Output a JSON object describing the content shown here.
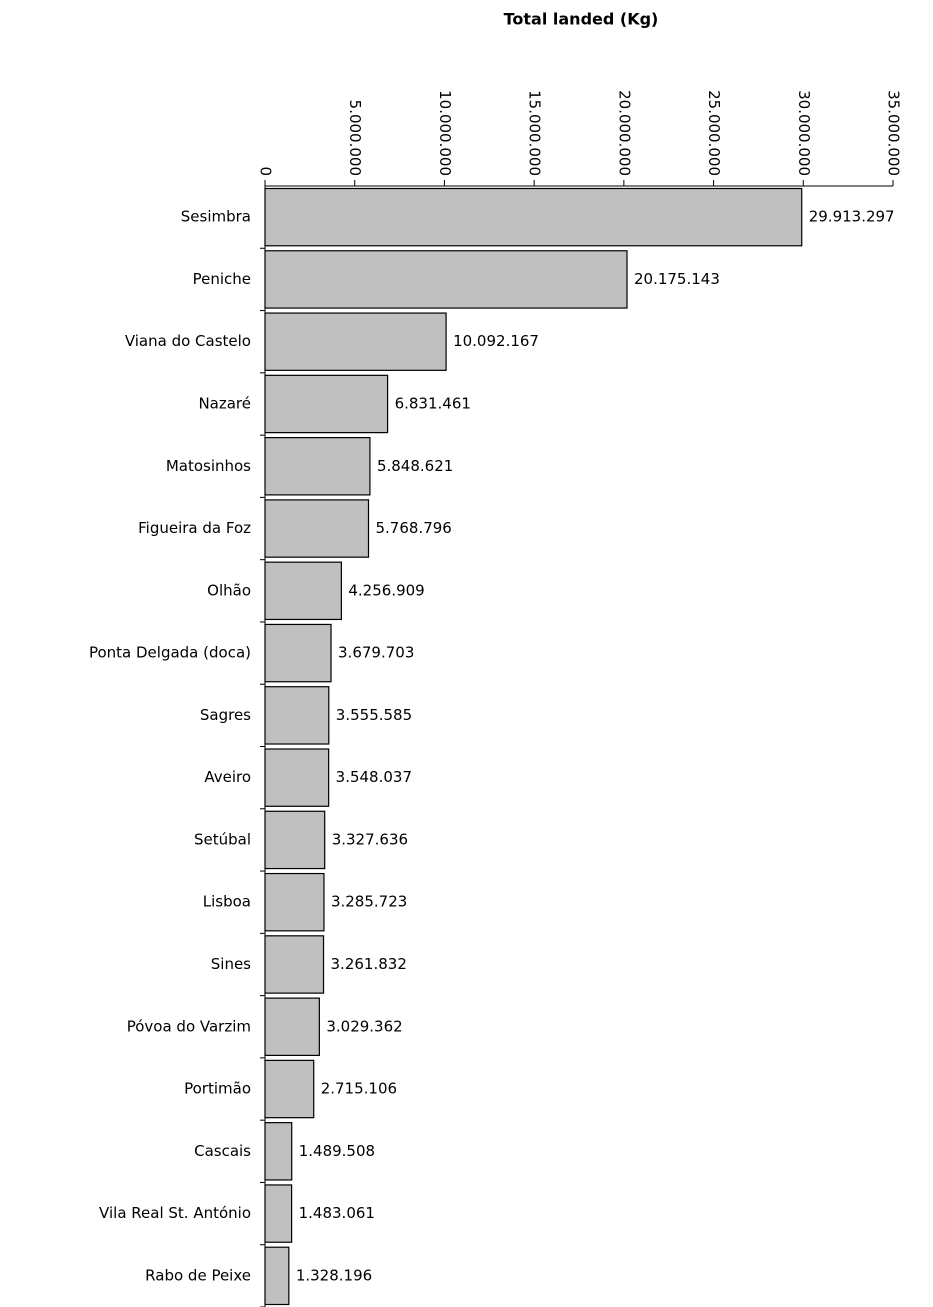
{
  "chart_data": {
    "type": "bar",
    "orientation": "horizontal",
    "x_label": "Total landed (Kg)",
    "categories": [
      "Sesimbra",
      "Peniche",
      "Viana do Castelo",
      "Nazaré",
      "Matosinhos",
      "Figueira da Foz",
      "Olhão",
      "Ponta Delgada (doca)",
      "Sagres",
      "Aveiro",
      "Setúbal",
      "Lisboa",
      "Sines",
      "Póvoa do Varzim",
      "Portimão",
      "Cascais",
      "Vila Real St. António",
      "Rabo de Peixe"
    ],
    "values": [
      29913297,
      20175143,
      10092167,
      6831461,
      5848621,
      5768796,
      4256909,
      3679703,
      3555585,
      3548037,
      3327636,
      3285723,
      3261832,
      3029362,
      2715106,
      1489508,
      1483061,
      1328196
    ],
    "value_labels": [
      "29.913.297",
      "20.175.143",
      "10.092.167",
      "6.831.461",
      "5.848.621",
      "5.768.796",
      "4.256.909",
      "3.679.703",
      "3.555.585",
      "3.548.037",
      "3.327.636",
      "3.285.723",
      "3.261.832",
      "3.029.362",
      "2.715.106",
      "1.489.508",
      "1.483.061",
      "1.328.196"
    ],
    "color": "#c0c0c0",
    "xlim": [
      0,
      35000000
    ],
    "xticks": [
      0,
      {
        "value": 5000000,
        "label": "5.000.000"
      },
      {
        "value": 10000000,
        "label": "10.000.000"
      },
      {
        "value": 15000000,
        "label": "15.000.000"
      },
      {
        "value": 20000000,
        "label": "20.000.000"
      },
      {
        "value": 25000000,
        "label": "25.000.000"
      },
      {
        "value": 30000000,
        "label": "30.000.000"
      },
      {
        "value": 35000000,
        "label": "35.000.000"
      }
    ],
    "grid": false
  }
}
